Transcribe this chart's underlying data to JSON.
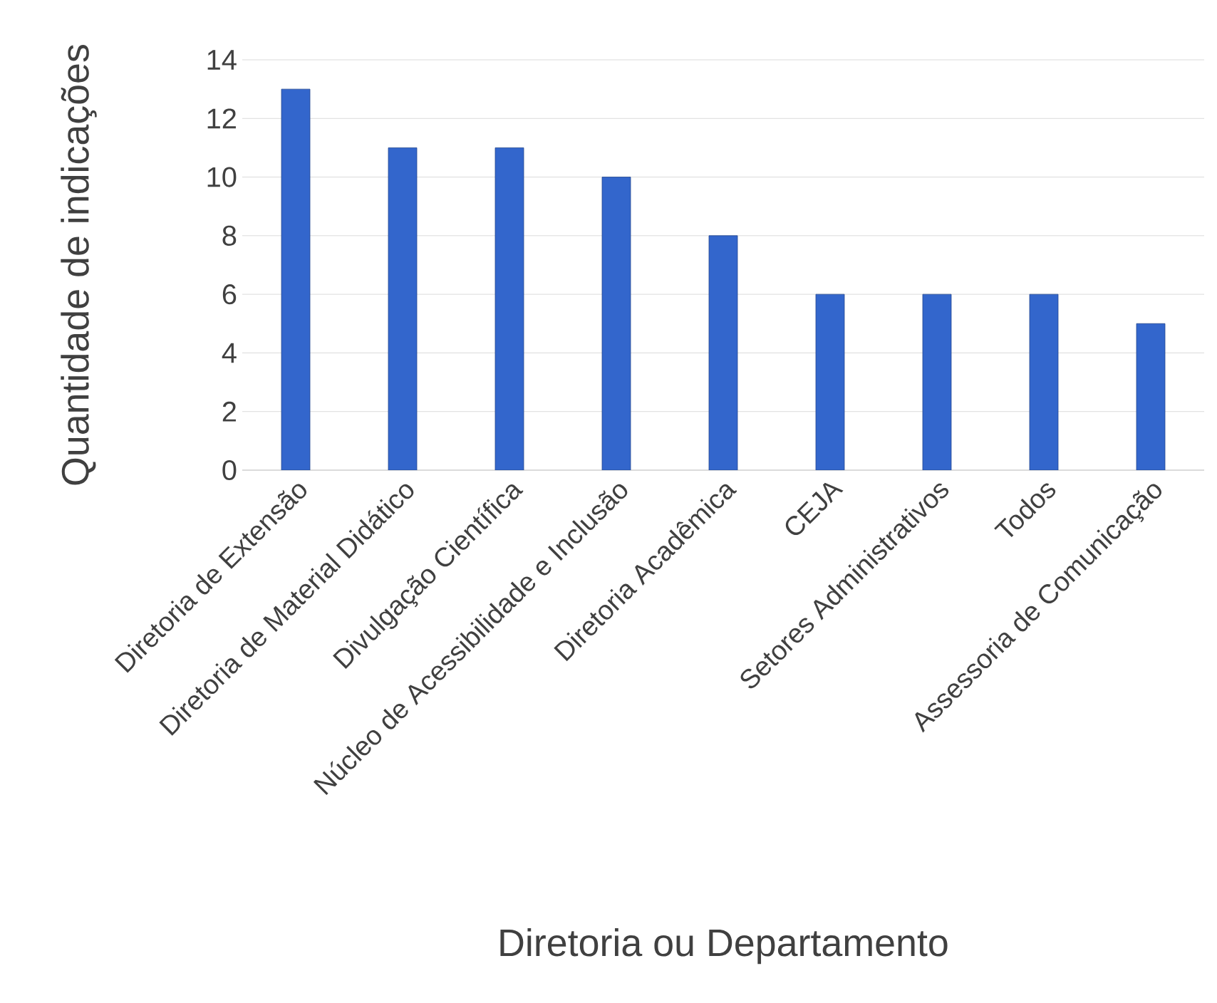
{
  "chart_data": {
    "type": "bar",
    "xlabel": "Diretoria ou Departamento",
    "ylabel": "Quantidade de indicações",
    "categories": [
      "Diretoria de Extensão",
      "Diretoria de Material Didático",
      "Divulgação Científica",
      "Núcleo de Acessibilidade e Inclusão",
      "Diretoria Acadêmica",
      "CEJA",
      "Setores Administrativos",
      "Todos",
      "Assessoria de Comunicação"
    ],
    "values": [
      13,
      11,
      11,
      10,
      8,
      6,
      6,
      6,
      5
    ],
    "color": "#3366cc",
    "ylim": [
      0,
      14
    ],
    "yticks": [
      0,
      2,
      4,
      6,
      8,
      10,
      12,
      14
    ],
    "grid": "y"
  }
}
